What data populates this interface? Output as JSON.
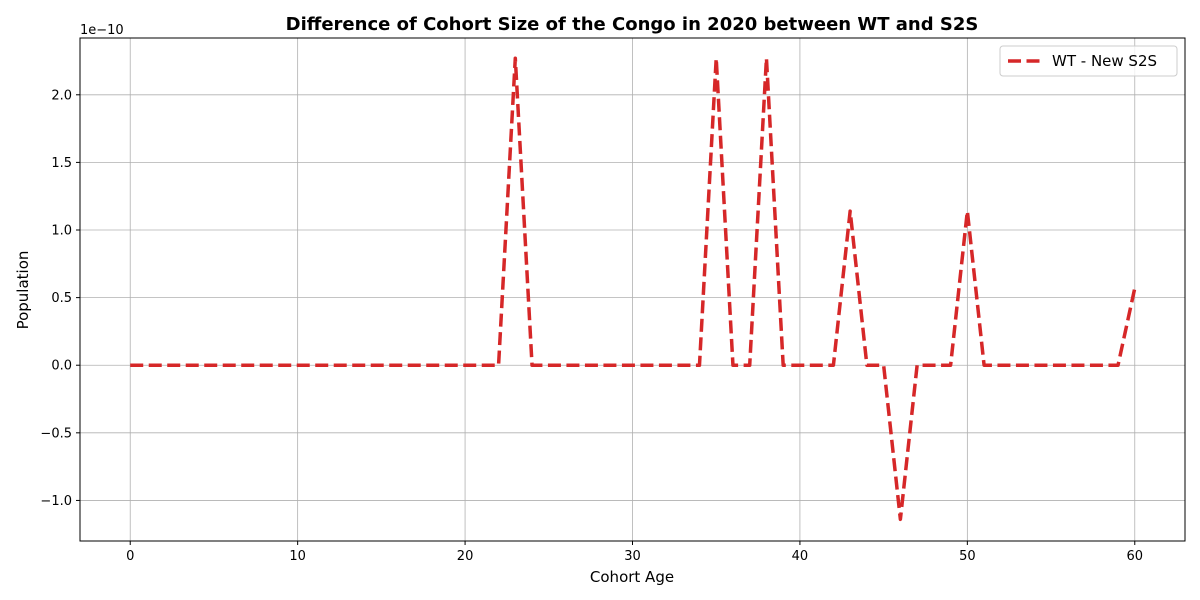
{
  "chart_data": {
    "type": "line",
    "title": "Difference of Cohort Size of the Congo in 2020 between WT and S2S",
    "xlabel": "Cohort Age",
    "ylabel": "Population",
    "y_scale_label": "1e−10",
    "xlim": [
      -3,
      63
    ],
    "ylim": [
      -1.3,
      2.42
    ],
    "x_ticks": [
      0,
      10,
      20,
      30,
      40,
      50,
      60
    ],
    "x_tick_labels": [
      "0",
      "10",
      "20",
      "30",
      "40",
      "50",
      "60"
    ],
    "y_ticks": [
      -1.0,
      -0.5,
      0.0,
      0.5,
      1.0,
      1.5,
      2.0
    ],
    "y_tick_labels": [
      "−1.0",
      "−0.5",
      "0.0",
      "0.5",
      "1.0",
      "1.5",
      "2.0"
    ],
    "grid": true,
    "legend_position": "top-right",
    "series": [
      {
        "name": "WT - New S2S",
        "color": "#d62728",
        "line_style": "dashed",
        "x": [
          0,
          1,
          2,
          3,
          4,
          5,
          6,
          7,
          8,
          9,
          10,
          11,
          12,
          13,
          14,
          15,
          16,
          17,
          18,
          19,
          20,
          21,
          22,
          23,
          24,
          25,
          26,
          27,
          28,
          29,
          30,
          31,
          32,
          33,
          34,
          35,
          36,
          37,
          38,
          39,
          40,
          41,
          42,
          43,
          44,
          45,
          46,
          47,
          48,
          49,
          50,
          51,
          52,
          53,
          54,
          55,
          56,
          57,
          58,
          59,
          60
        ],
        "values": [
          0,
          0,
          0,
          0,
          0,
          0,
          0,
          0,
          0,
          0,
          0,
          0,
          0,
          0,
          0,
          0,
          0,
          0,
          0,
          0,
          0,
          0,
          0,
          2.27,
          0,
          0,
          0,
          0,
          0,
          0,
          0,
          0,
          0,
          0,
          0,
          2.27,
          0,
          0,
          2.27,
          0,
          0,
          0,
          0,
          1.14,
          0,
          0,
          -1.14,
          0,
          0,
          0,
          1.14,
          0,
          0,
          0,
          0,
          0,
          0,
          0,
          0,
          0,
          0.57
        ]
      }
    ]
  }
}
